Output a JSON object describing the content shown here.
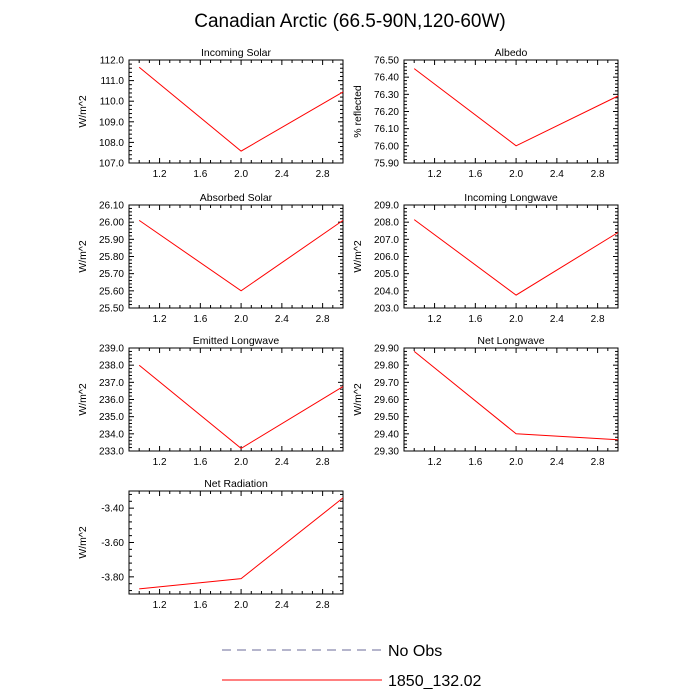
{
  "title": "Canadian Arctic (66.5-90N,120-60W)",
  "colors": {
    "series": "#ff0000",
    "obs": "#6b6b9a",
    "axis": "#000000"
  },
  "legend": [
    {
      "label": "No Obs",
      "style": "dashed",
      "color": "#6b6b9a"
    },
    {
      "label": "1850_132.02",
      "style": "solid",
      "color": "#ff0000"
    }
  ],
  "chart_data": [
    {
      "type": "line",
      "title": "Incoming Solar",
      "ylabel": "W/m^2",
      "x": [
        1.0,
        2.0,
        3.0
      ],
      "y": [
        111.65,
        107.58,
        110.45
      ],
      "xlim": [
        0.9,
        3.0
      ],
      "ylim": [
        107.0,
        112.0
      ],
      "xticks": [
        "1.2",
        "1.6",
        "2.0",
        "2.4",
        "2.8"
      ],
      "yticks": [
        "112.0",
        "111.0",
        "110.0",
        "109.0",
        "108.0",
        "107.0"
      ],
      "series_name": "1850_132.02"
    },
    {
      "type": "line",
      "title": "Albedo",
      "ylabel": "% reflected",
      "x": [
        1.0,
        2.0,
        3.0
      ],
      "y": [
        76.45,
        76.0,
        76.29
      ],
      "xlim": [
        0.9,
        3.0
      ],
      "ylim": [
        75.9,
        76.5
      ],
      "xticks": [
        "1.2",
        "1.6",
        "2.0",
        "2.4",
        "2.8"
      ],
      "yticks": [
        "76.50",
        "76.40",
        "76.30",
        "76.20",
        "76.10",
        "76.00",
        "75.90"
      ],
      "series_name": "1850_132.02"
    },
    {
      "type": "line",
      "title": "Absorbed Solar",
      "ylabel": "W/m^2",
      "x": [
        1.0,
        2.0,
        3.0
      ],
      "y": [
        26.01,
        25.6,
        26.01
      ],
      "xlim": [
        0.9,
        3.0
      ],
      "ylim": [
        25.5,
        26.1
      ],
      "xticks": [
        "1.2",
        "1.6",
        "2.0",
        "2.4",
        "2.8"
      ],
      "yticks": [
        "26.10",
        "26.00",
        "25.90",
        "25.80",
        "25.70",
        "25.60",
        "25.50"
      ],
      "series_name": "1850_132.02"
    },
    {
      "type": "line",
      "title": "Incoming Longwave",
      "ylabel": "W/m^2",
      "x": [
        1.0,
        2.0,
        3.0
      ],
      "y": [
        208.15,
        203.75,
        207.4
      ],
      "xlim": [
        0.9,
        3.0
      ],
      "ylim": [
        203.0,
        209.0
      ],
      "xticks": [
        "1.2",
        "1.6",
        "2.0",
        "2.4",
        "2.8"
      ],
      "yticks": [
        "209.0",
        "208.0",
        "207.0",
        "206.0",
        "205.0",
        "204.0",
        "203.0"
      ],
      "series_name": "1850_132.02"
    },
    {
      "type": "line",
      "title": "Emitted Longwave",
      "ylabel": "W/m^2",
      "x": [
        1.0,
        2.0,
        3.0
      ],
      "y": [
        238.0,
        233.15,
        236.75
      ],
      "xlim": [
        0.9,
        3.0
      ],
      "ylim": [
        233.0,
        239.0
      ],
      "xticks": [
        "1.2",
        "1.6",
        "2.0",
        "2.4",
        "2.8"
      ],
      "yticks": [
        "239.0",
        "238.0",
        "237.0",
        "236.0",
        "235.0",
        "234.0",
        "233.0"
      ],
      "series_name": "1850_132.02"
    },
    {
      "type": "line",
      "title": "Net Longwave",
      "ylabel": "W/m^2",
      "x": [
        1.0,
        2.0,
        3.0
      ],
      "y": [
        29.88,
        29.4,
        29.365
      ],
      "xlim": [
        0.9,
        3.0
      ],
      "ylim": [
        29.3,
        29.9
      ],
      "xticks": [
        "1.2",
        "1.6",
        "2.0",
        "2.4",
        "2.8"
      ],
      "yticks": [
        "29.90",
        "29.80",
        "29.70",
        "29.60",
        "29.50",
        "29.40",
        "29.30"
      ],
      "series_name": "1850_132.02"
    },
    {
      "type": "line",
      "title": "Net Radiation",
      "ylabel": "W/m^2",
      "x": [
        1.0,
        2.0,
        3.0
      ],
      "y": [
        -3.87,
        -3.81,
        -3.34
      ],
      "xlim": [
        0.9,
        3.0
      ],
      "ylim": [
        -3.9,
        -3.3
      ],
      "ytick_values": [
        -3.4,
        -3.6,
        -3.8
      ],
      "xticks": [
        "1.2",
        "1.6",
        "2.0",
        "2.4",
        "2.8"
      ],
      "yticks": [
        "-3.40",
        "-3.60",
        "-3.80"
      ],
      "series_name": "1850_132.02"
    }
  ]
}
